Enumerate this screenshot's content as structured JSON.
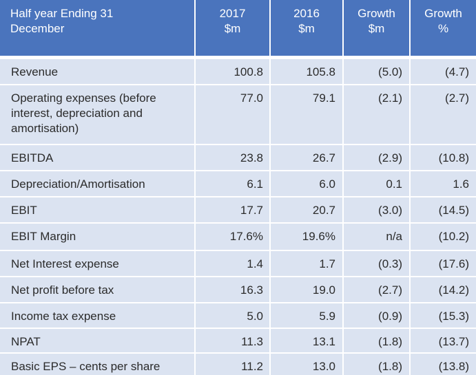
{
  "header": {
    "col0": [
      "Half year Ending  31",
      "December"
    ],
    "col1": [
      "2017",
      "$m"
    ],
    "col2": [
      "2016",
      "$m"
    ],
    "col3": [
      "Growth",
      "$m"
    ],
    "col4": [
      "Growth",
      "%"
    ]
  },
  "rows": [
    {
      "label": [
        "Revenue"
      ],
      "v2017": "100.8",
      "v2016": "105.8",
      "growth_m": "(5.0)",
      "growth_pct": "(4.7)"
    },
    {
      "label": [
        "Operating expenses (before",
        "interest, depreciation and",
        "amortisation)"
      ],
      "v2017": "77.0",
      "v2016": "79.1",
      "growth_m": "(2.1)",
      "growth_pct": "(2.7)"
    },
    {
      "label": [
        "EBITDA"
      ],
      "v2017": "23.8",
      "v2016": "26.7",
      "growth_m": "(2.9)",
      "growth_pct": "(10.8)"
    },
    {
      "label": [
        "Depreciation/Amortisation"
      ],
      "v2017": "6.1",
      "v2016": "6.0",
      "growth_m": "0.1",
      "growth_pct": "1.6"
    },
    {
      "label": [
        "EBIT"
      ],
      "v2017": "17.7",
      "v2016": "20.7",
      "growth_m": "(3.0)",
      "growth_pct": "(14.5)"
    },
    {
      "label": [
        "EBIT Margin"
      ],
      "v2017": "17.6%",
      "v2016": "19.6%",
      "growth_m": "n/a",
      "growth_pct": "(10.2)"
    },
    {
      "label": [
        "Net Interest expense"
      ],
      "v2017": "1.4",
      "v2016": "1.7",
      "growth_m": "(0.3)",
      "growth_pct": "(17.6)"
    },
    {
      "label": [
        "Net profit before tax"
      ],
      "v2017": "16.3",
      "v2016": "19.0",
      "growth_m": "(2.7)",
      "growth_pct": "(14.2)"
    },
    {
      "label": [
        "Income tax expense"
      ],
      "v2017": "5.0",
      "v2016": "5.9",
      "growth_m": "(0.9)",
      "growth_pct": "(15.3)"
    },
    {
      "label": [
        "NPAT"
      ],
      "v2017": "11.3",
      "v2016": "13.1",
      "growth_m": "(1.8)",
      "growth_pct": "(13.7)"
    },
    {
      "label": [
        "Basic EPS – cents per share"
      ],
      "v2017": "11.2",
      "v2016": "13.0",
      "growth_m": "(1.8)",
      "growth_pct": "(13.8)"
    }
  ],
  "colors": {
    "header_bg": "#4a74bd",
    "row_bg": "#dbe3f1"
  }
}
